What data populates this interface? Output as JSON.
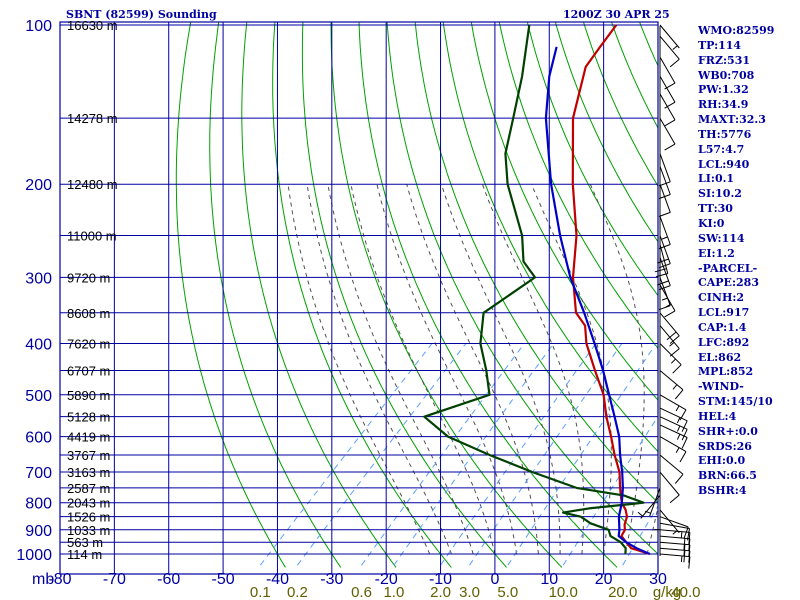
{
  "header": {
    "station": "SBNT (82599) Sounding",
    "time": "1200Z 30 APR 25"
  },
  "colors": {
    "background": "#ffffff",
    "grid": "#0000a0",
    "dry_adiabat": "#00a000",
    "moist_adiabat": "#505050",
    "mixing_ratio": "#5aa0ff",
    "temperature": "#c00000",
    "dewpoint": "#004000",
    "parcel": "#0000c8",
    "labels": "#0000a0",
    "mixing_labels": "#606000",
    "wind_barb": "#000000"
  },
  "chart_data": {
    "type": "skew-t",
    "title": "SBNT (82599) Sounding",
    "x_unit_label": "mb",
    "xlim": [
      -80,
      30
    ],
    "x_ticks": [
      -80,
      -70,
      -60,
      -50,
      -40,
      -30,
      -20,
      -10,
      0,
      10,
      20,
      30
    ],
    "pressure_range": [
      1000,
      100
    ],
    "pressure_ticks": [
      100,
      200,
      300,
      400,
      500,
      600,
      700,
      800,
      900,
      1000
    ],
    "height_labels": [
      {
        "p": 100,
        "h": "16630 m"
      },
      {
        "p": 150,
        "h": "14278 m"
      },
      {
        "p": 200,
        "h": "12480 m"
      },
      {
        "p": 250,
        "h": "11000 m"
      },
      {
        "p": 300,
        "h": "9720 m"
      },
      {
        "p": 350,
        "h": "8608 m"
      },
      {
        "p": 400,
        "h": "7620 m"
      },
      {
        "p": 450,
        "h": "6707 m"
      },
      {
        "p": 500,
        "h": "5890 m"
      },
      {
        "p": 550,
        "h": "5128 m"
      },
      {
        "p": 600,
        "h": "4419 m"
      },
      {
        "p": 650,
        "h": "3767 m"
      },
      {
        "p": 700,
        "h": "3163 m"
      },
      {
        "p": 750,
        "h": "2587 m"
      },
      {
        "p": 800,
        "h": "2043 m"
      },
      {
        "p": 850,
        "h": "1526 m"
      },
      {
        "p": 900,
        "h": "1033 m"
      },
      {
        "p": 950,
        "h": "563 m"
      },
      {
        "p": 1000,
        "h": "114 m"
      }
    ],
    "mixing_ratio_labels": [
      "0.1",
      "0.2",
      "0.6",
      "1.0",
      "2.0",
      "3.0",
      "5.0",
      "10.0",
      "20.0",
      "40.0"
    ],
    "mixing_ratio_values": [
      0.1,
      0.2,
      0.6,
      1.0,
      2.0,
      3.0,
      5.0,
      10.0,
      20.0,
      40.0
    ],
    "mixing_ratio_unit": "g/kg",
    "series": [
      {
        "key": "temperature",
        "points": [
          [
            1000,
            28.5
          ],
          [
            975,
            24.0
          ],
          [
            950,
            22.0
          ],
          [
            925,
            20.0
          ],
          [
            900,
            19.5
          ],
          [
            880,
            18.5
          ],
          [
            850,
            17.5
          ],
          [
            825,
            16.0
          ],
          [
            800,
            14.0
          ],
          [
            775,
            12.5
          ],
          [
            750,
            11.0
          ],
          [
            700,
            8.0
          ],
          [
            650,
            4.0
          ],
          [
            600,
            0.0
          ],
          [
            550,
            -4.5
          ],
          [
            500,
            -9.0
          ],
          [
            450,
            -15.0
          ],
          [
            400,
            -21.5
          ],
          [
            370,
            -25.0
          ],
          [
            350,
            -29.0
          ],
          [
            300,
            -36.0
          ],
          [
            250,
            -43.0
          ],
          [
            200,
            -53.0
          ],
          [
            150,
            -65.0
          ],
          [
            120,
            -72.0
          ],
          [
            110,
            -73.0
          ],
          [
            100,
            -74.0
          ]
        ]
      },
      {
        "key": "dewpoint",
        "points": [
          [
            1000,
            24.0
          ],
          [
            975,
            23.0
          ],
          [
            950,
            21.0
          ],
          [
            925,
            18.0
          ],
          [
            900,
            16.5
          ],
          [
            875,
            12.0
          ],
          [
            850,
            9.0
          ],
          [
            835,
            5.0
          ],
          [
            820,
            9.0
          ],
          [
            800,
            18.0
          ],
          [
            775,
            13.0
          ],
          [
            750,
            3.0
          ],
          [
            700,
            -8.0
          ],
          [
            650,
            -19.0
          ],
          [
            600,
            -30.0
          ],
          [
            550,
            -38.0
          ],
          [
            500,
            -30.0
          ],
          [
            450,
            -35.0
          ],
          [
            400,
            -41.0
          ],
          [
            350,
            -46.0
          ],
          [
            300,
            -43.0
          ],
          [
            280,
            -48.0
          ],
          [
            250,
            -53.0
          ],
          [
            200,
            -65.0
          ],
          [
            175,
            -71.0
          ],
          [
            150,
            -76.0
          ],
          [
            125,
            -82.0
          ],
          [
            100,
            -90.0
          ]
        ]
      },
      {
        "key": "parcel",
        "points": [
          [
            1000,
            28.5
          ],
          [
            975,
            25.0
          ],
          [
            950,
            22.0
          ],
          [
            925,
            19.5
          ],
          [
            900,
            18.5
          ],
          [
            850,
            16.0
          ],
          [
            800,
            14.0
          ],
          [
            750,
            11.5
          ],
          [
            700,
            8.5
          ],
          [
            650,
            5.0
          ],
          [
            600,
            1.5
          ],
          [
            550,
            -3.0
          ],
          [
            500,
            -8.0
          ],
          [
            450,
            -13.5
          ],
          [
            400,
            -20.0
          ],
          [
            350,
            -27.5
          ],
          [
            300,
            -36.5
          ],
          [
            250,
            -46.0
          ],
          [
            200,
            -57.0
          ],
          [
            150,
            -70.0
          ],
          [
            125,
            -77.0
          ],
          [
            110,
            -81.0
          ]
        ]
      }
    ],
    "wind_barbs": [
      {
        "p": 1000,
        "dir": 95,
        "kt": 15
      },
      {
        "p": 975,
        "dir": 95,
        "kt": 20
      },
      {
        "p": 950,
        "dir": 95,
        "kt": 20
      },
      {
        "p": 925,
        "dir": 95,
        "kt": 20
      },
      {
        "p": 900,
        "dir": 95,
        "kt": 15
      },
      {
        "p": 875,
        "dir": 100,
        "kt": 10
      },
      {
        "p": 850,
        "dir": 110,
        "kt": 10
      },
      {
        "p": 825,
        "dir": 140,
        "kt": 5
      },
      {
        "p": 800,
        "dir": 180,
        "kt": 5
      },
      {
        "p": 775,
        "dir": 220,
        "kt": 5
      },
      {
        "p": 750,
        "dir": 200,
        "kt": 5
      },
      {
        "p": 700,
        "dir": 140,
        "kt": 10
      },
      {
        "p": 650,
        "dir": 130,
        "kt": 10
      },
      {
        "p": 600,
        "dir": 120,
        "kt": 15
      },
      {
        "p": 570,
        "dir": 115,
        "kt": 15
      },
      {
        "p": 550,
        "dir": 115,
        "kt": 15
      },
      {
        "p": 530,
        "dir": 115,
        "kt": 15
      },
      {
        "p": 500,
        "dir": 120,
        "kt": 15
      },
      {
        "p": 450,
        "dir": 130,
        "kt": 15
      },
      {
        "p": 400,
        "dir": 135,
        "kt": 15
      },
      {
        "p": 370,
        "dir": 140,
        "kt": 15
      },
      {
        "p": 350,
        "dir": 140,
        "kt": 20
      },
      {
        "p": 310,
        "dir": 150,
        "kt": 15
      },
      {
        "p": 300,
        "dir": 160,
        "kt": 15
      },
      {
        "p": 275,
        "dir": 160,
        "kt": 20
      },
      {
        "p": 260,
        "dir": 165,
        "kt": 20
      },
      {
        "p": 250,
        "dir": 160,
        "kt": 20
      },
      {
        "p": 230,
        "dir": 160,
        "kt": 15
      },
      {
        "p": 200,
        "dir": 160,
        "kt": 10
      },
      {
        "p": 185,
        "dir": 160,
        "kt": 10
      },
      {
        "p": 175,
        "dir": 160,
        "kt": 10
      },
      {
        "p": 150,
        "dir": 150,
        "kt": 10
      },
      {
        "p": 135,
        "dir": 150,
        "kt": 10
      },
      {
        "p": 125,
        "dir": 150,
        "kt": 10
      },
      {
        "p": 115,
        "dir": 150,
        "kt": 10
      },
      {
        "p": 105,
        "dir": 140,
        "kt": 10
      },
      {
        "p": 100,
        "dir": 140,
        "kt": 5
      }
    ]
  },
  "indices": [
    "WMO:82599",
    "TP:114",
    "FRZ:531",
    "WB0:708",
    "PW:1.32",
    "RH:34.9",
    "MAXT:32.3",
    "TH:5776",
    "L57:4.7",
    "LCL:940",
    "LI:0.1",
    "SI:10.2",
    "TT:30",
    "KI:0",
    "SW:114",
    "EI:1.2",
    "-PARCEL-",
    "CAPE:283",
    "CINH:2",
    "LCL:917",
    "CAP:1.4",
    "LFC:892",
    "EL:862",
    "MPL:852",
    "-WIND-",
    "STM:145/10",
    "HEL:4",
    "SHR+:0.0",
    "SRDS:26",
    "EHI:0.0",
    "BRN:66.5",
    "BSHR:4"
  ]
}
